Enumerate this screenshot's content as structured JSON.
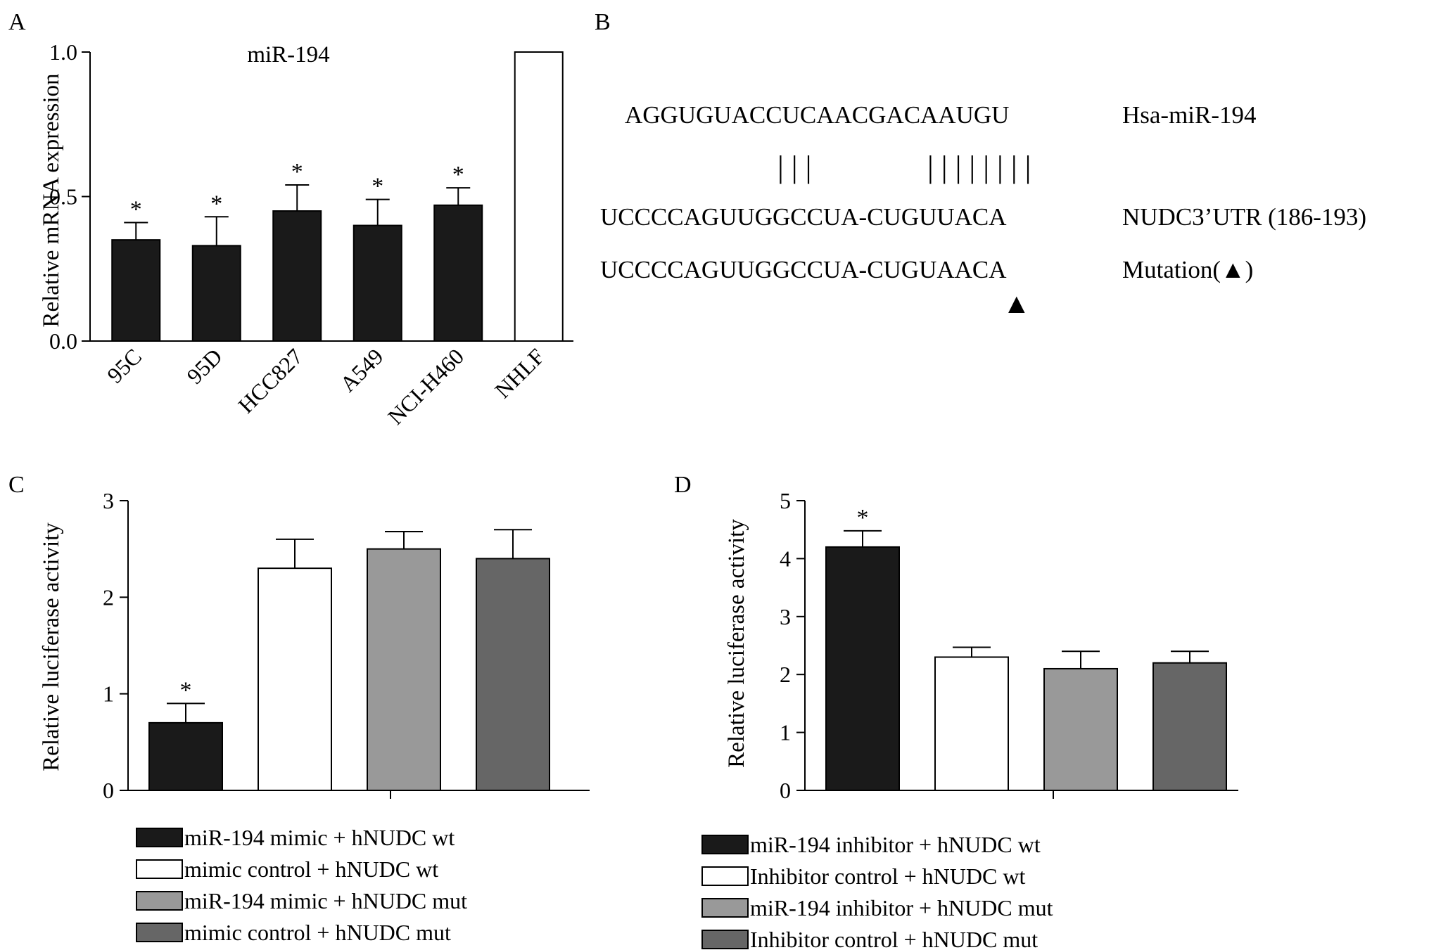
{
  "panels": {
    "a": "A",
    "b": "B",
    "c": "C",
    "d": "D"
  },
  "chart_data": [
    {
      "type": "bar",
      "panel": "A",
      "title": "miR-194",
      "ylabel": "Relative mRNA expression",
      "ylim": [
        0,
        1.0
      ],
      "yticks": [
        "0.0",
        "0.5",
        "1.0"
      ],
      "categories": [
        "95C",
        "95D",
        "HCC827",
        "A549",
        "NCI-H460",
        "NHLF"
      ],
      "values": [
        0.35,
        0.33,
        0.45,
        0.4,
        0.47,
        1.0
      ],
      "errors": [
        0.06,
        0.1,
        0.09,
        0.09,
        0.06,
        0
      ],
      "significance": [
        "*",
        "*",
        "*",
        "*",
        "*",
        ""
      ],
      "fills": [
        "#1a1a1a",
        "#1a1a1a",
        "#1a1a1a",
        "#1a1a1a",
        "#1a1a1a",
        "#ffffff"
      ]
    },
    {
      "type": "bar",
      "panel": "C",
      "ylabel": "Relative luciferase activity",
      "ylim": [
        0,
        3
      ],
      "yticks": [
        "0",
        "1",
        "2",
        "3"
      ],
      "legend_position": "bottom",
      "series": [
        {
          "name": "miR-194 mimic + hNUDC wt",
          "value": 0.7,
          "error": 0.2,
          "sig": "*",
          "color": "#1a1a1a"
        },
        {
          "name": "mimic control + hNUDC  wt",
          "value": 2.3,
          "error": 0.3,
          "sig": "",
          "color": "#ffffff"
        },
        {
          "name": "miR-194 mimic + hNUDC mut",
          "value": 2.5,
          "error": 0.18,
          "sig": "",
          "color": "#999999"
        },
        {
          "name": "mimic control + hNUDC mut",
          "value": 2.4,
          "error": 0.3,
          "sig": "",
          "color": "#666666"
        }
      ]
    },
    {
      "type": "bar",
      "panel": "D",
      "ylabel": "Relative luciferase activity",
      "ylim": [
        0,
        5
      ],
      "yticks": [
        "0",
        "1",
        "2",
        "3",
        "4",
        "5"
      ],
      "legend_position": "bottom",
      "series": [
        {
          "name": "miR-194 inhibitor + hNUDC  wt",
          "value": 4.2,
          "error": 0.28,
          "sig": "*",
          "color": "#1a1a1a"
        },
        {
          "name": "Inhibitor control + hNUDC wt",
          "value": 2.3,
          "error": 0.17,
          "sig": "",
          "color": "#ffffff"
        },
        {
          "name": "miR-194 inhibitor + hNUDC mut",
          "value": 2.1,
          "error": 0.3,
          "sig": "",
          "color": "#999999"
        },
        {
          "name": "Inhibitor control + hNUDC mut",
          "value": 2.2,
          "error": 0.2,
          "sig": "",
          "color": "#666666"
        }
      ]
    }
  ],
  "sequences": {
    "mirna_seq": "AGGUGUACCUCAACGACAAUGU",
    "mirna_label": "Hsa-miR-194",
    "utr_seq": "UCCCCAGUUGGCCUA-CUGUUACA",
    "utr_label": "NUDC3’UTR (186-193)",
    "mut_seq": "UCCCCAGUUGGCCUA-CUGUAACA",
    "mut_label": "Mutation(▲)",
    "pair_group1": "| | |",
    "pair_group2": "| | | | | | | |",
    "marker": "▲"
  }
}
